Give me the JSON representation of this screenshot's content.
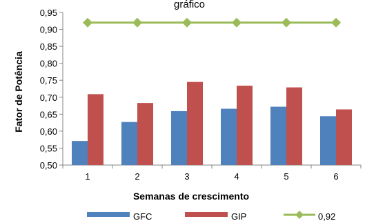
{
  "chart_data": {
    "type": "bar",
    "title": "gráfico",
    "xlabel": "Semanas de crescimento",
    "ylabel": "Fator de Potência",
    "categories": [
      "1",
      "2",
      "3",
      "4",
      "5",
      "6"
    ],
    "ylim": [
      0.5,
      0.95
    ],
    "yticks": [
      "0,50",
      "0,55",
      "0,60",
      "0,65",
      "0,70",
      "0,75",
      "0,80",
      "0,85",
      "0,90",
      "0,95"
    ],
    "grid": false,
    "legend_position": "bottom",
    "series": [
      {
        "name": "GFC",
        "kind": "bar",
        "color": "#4F81BD",
        "values": [
          0.571,
          0.627,
          0.659,
          0.666,
          0.672,
          0.644
        ]
      },
      {
        "name": "GIP",
        "kind": "bar",
        "color": "#C0504D",
        "values": [
          0.709,
          0.683,
          0.745,
          0.734,
          0.729,
          0.664
        ]
      },
      {
        "name": "0,92",
        "kind": "line",
        "color": "#9BBB59",
        "marker": "diamond",
        "values": [
          0.92,
          0.92,
          0.92,
          0.92,
          0.92,
          0.92
        ]
      }
    ]
  }
}
